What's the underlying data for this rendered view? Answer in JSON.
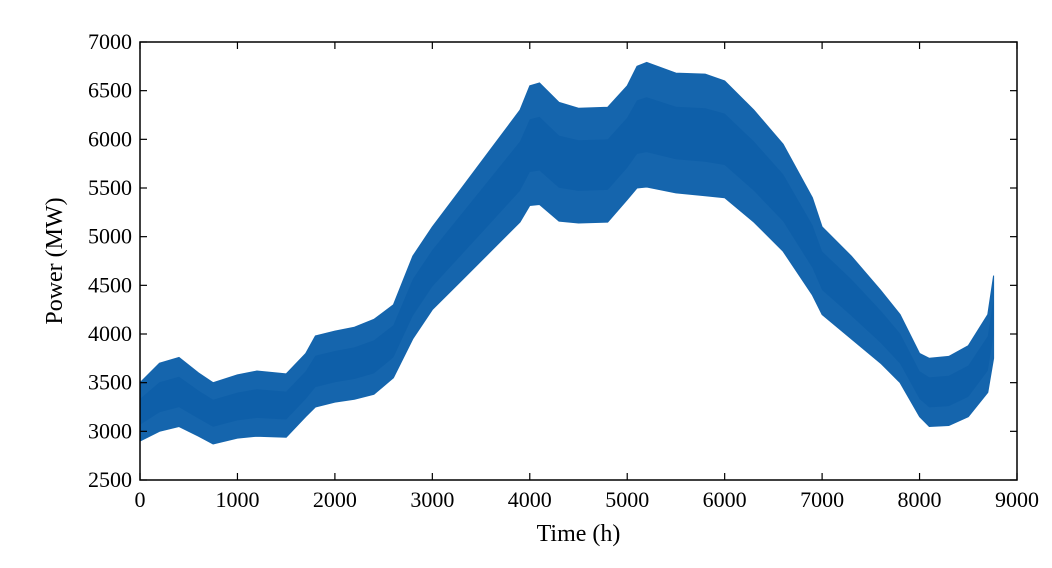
{
  "chart_data": {
    "type": "area",
    "title": "",
    "xlabel": "Time (h)",
    "ylabel": "Power (MW)",
    "xlim": [
      0,
      9000
    ],
    "ylim": [
      2500,
      7000
    ],
    "x_ticks": [
      0,
      1000,
      2000,
      3000,
      4000,
      5000,
      6000,
      7000,
      8000,
      9000
    ],
    "y_ticks": [
      2500,
      3000,
      3500,
      4000,
      4500,
      5000,
      5500,
      6000,
      6500,
      7000
    ],
    "grid": false,
    "legend": "none",
    "series": [
      {
        "name": "",
        "color": "#1565ad",
        "x": [
          0,
          200,
          400,
          600,
          750,
          1000,
          1200,
          1500,
          1700,
          1800,
          2000,
          2200,
          2400,
          2600,
          2800,
          3000,
          3300,
          3600,
          3900,
          4000,
          4100,
          4300,
          4500,
          4800,
          5000,
          5100,
          5200,
          5500,
          5800,
          6000,
          6300,
          6600,
          6900,
          7000,
          7300,
          7600,
          7800,
          8000,
          8100,
          8300,
          8500,
          8700,
          8760
        ],
        "y_upper": [
          3500,
          3700,
          3760,
          3600,
          3500,
          3580,
          3620,
          3590,
          3800,
          3980,
          4030,
          4070,
          4150,
          4300,
          4800,
          5100,
          5500,
          5900,
          6300,
          6550,
          6580,
          6380,
          6320,
          6330,
          6550,
          6750,
          6790,
          6680,
          6670,
          6600,
          6300,
          5950,
          5400,
          5100,
          4800,
          4450,
          4200,
          3800,
          3750,
          3770,
          3880,
          4200,
          4600
        ],
        "y_lower": [
          2900,
          3000,
          3050,
          2950,
          2870,
          2930,
          2950,
          2940,
          3150,
          3250,
          3300,
          3330,
          3380,
          3550,
          3950,
          4250,
          4550,
          4850,
          5150,
          5320,
          5330,
          5160,
          5140,
          5150,
          5380,
          5500,
          5510,
          5450,
          5420,
          5400,
          5150,
          4850,
          4400,
          4200,
          3950,
          3700,
          3500,
          3150,
          3050,
          3060,
          3150,
          3400,
          3750
        ]
      }
    ]
  }
}
